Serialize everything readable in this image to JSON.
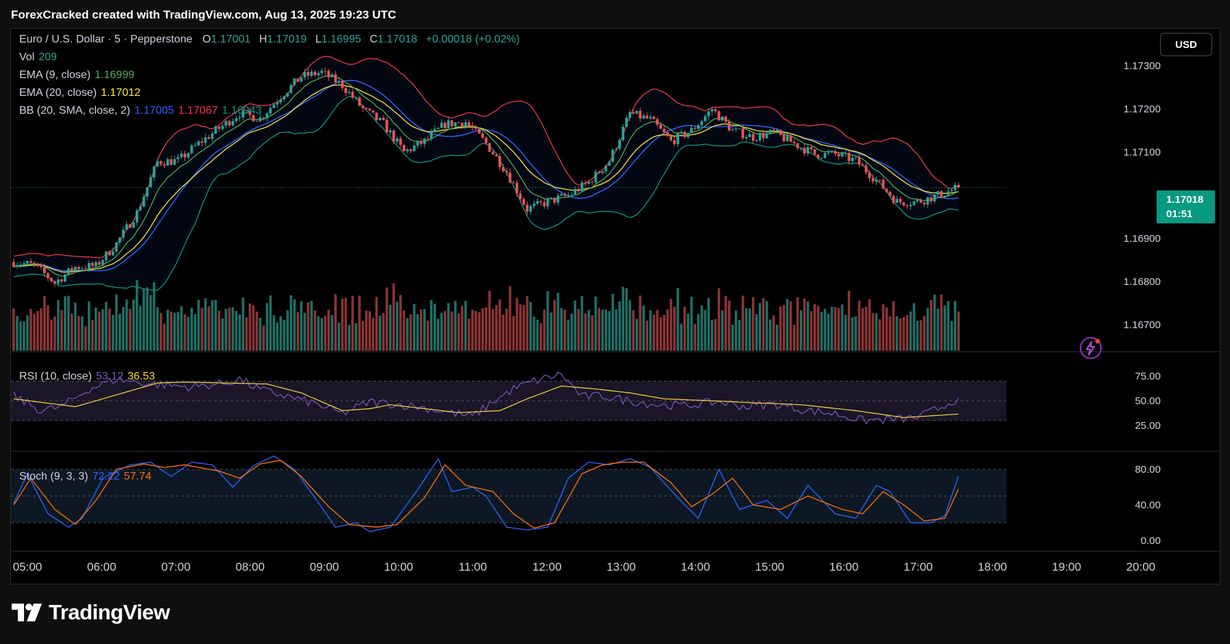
{
  "header": {
    "title": "ForexCracked created with TradingView.com, Aug 13, 2025 19:23 UTC"
  },
  "legend": {
    "symbol": "Euro / U.S. Dollar · 5 · Pepperstone",
    "o_label": "O",
    "o_value": "1.17001",
    "h_label": "H",
    "h_value": "1.17019",
    "l_label": "L",
    "l_value": "1.16995",
    "c_label": "C",
    "c_value": "1.17018",
    "change": "+0.00018 (+0.02%)",
    "vol_label": "Vol",
    "vol_value": "209",
    "ema9_label": "EMA (9, close)",
    "ema9_value": "1.16999",
    "ema20_label": "EMA (20, close)",
    "ema20_value": "1.17012",
    "bb_label": "BB (20, SMA, close, 2)",
    "bb_mid": "1.17005",
    "bb_upper": "1.17067",
    "bb_lower": "1.16943",
    "rsi_label": "RSI (10, close)",
    "rsi_value": "53.12",
    "rsi_ma": "36.53",
    "stoch_label": "Stoch (9, 3, 3)",
    "stoch_k": "72.22",
    "stoch_d": "57.74"
  },
  "currency_button": "USD",
  "last_price": {
    "price": "1.17018",
    "countdown": "01:51"
  },
  "logo": {
    "text": "TradingView"
  },
  "colors": {
    "up": "#26a69a",
    "down": "#ef5350",
    "vol_up": "#1f6f66",
    "vol_down": "#8c3535",
    "ema9": "#4caf50",
    "ema20": "#ffeb3b",
    "bb_mid": "#2962ff",
    "bb_upper": "#f23645",
    "bb_lower": "#089981",
    "rsi": "#7e57c2",
    "rsi_ma": "#fdd835",
    "stoch_k": "#2962ff",
    "stoch_d": "#ff6d00",
    "axis_text": "#d1d4dc"
  },
  "chart_data": {
    "type": "candlestick",
    "symbol": "Euro / U.S. Dollar",
    "interval": "5",
    "x_ticks": [
      "05:00",
      "06:00",
      "07:00",
      "08:00",
      "09:00",
      "10:00",
      "11:00",
      "12:00",
      "13:00",
      "14:00",
      "15:00",
      "16:00",
      "17:00",
      "18:00",
      "19:00",
      "20:00"
    ],
    "price_axis": {
      "ticks": [
        "1.17300",
        "1.17200",
        "1.17100",
        "1.16900",
        "1.16800",
        "1.16700"
      ],
      "range": [
        1.1664,
        1.1737
      ]
    },
    "rsi_axis": {
      "ticks": [
        "75.00",
        "50.00",
        "25.00"
      ],
      "range": [
        0,
        100
      ],
      "band": [
        30,
        70
      ]
    },
    "stoch_axis": {
      "ticks": [
        "80.00",
        "40.00",
        "0.00"
      ],
      "range": [
        -10,
        100
      ],
      "band": [
        20,
        80
      ]
    },
    "price_anchors": [
      [
        0,
        1.16846
      ],
      [
        6,
        1.16838
      ],
      [
        12,
        1.16798
      ],
      [
        18,
        1.16834
      ],
      [
        24,
        1.16836
      ],
      [
        30,
        1.16888
      ],
      [
        36,
        1.1696
      ],
      [
        42,
        1.17078
      ],
      [
        48,
        1.1708
      ],
      [
        54,
        1.1712
      ],
      [
        60,
        1.17155
      ],
      [
        66,
        1.1719
      ],
      [
        72,
        1.17178
      ],
      [
        78,
        1.1723
      ],
      [
        84,
        1.17275
      ],
      [
        90,
        1.17285
      ],
      [
        96,
        1.17255
      ],
      [
        102,
        1.172
      ],
      [
        108,
        1.17165
      ],
      [
        114,
        1.171
      ],
      [
        120,
        1.17125
      ],
      [
        126,
        1.17165
      ],
      [
        132,
        1.1717
      ],
      [
        138,
        1.1712
      ],
      [
        144,
        1.17055
      ],
      [
        150,
        1.16968
      ],
      [
        156,
        1.16985
      ],
      [
        162,
        1.17
      ],
      [
        168,
        1.1703
      ],
      [
        174,
        1.1708
      ],
      [
        180,
        1.1719
      ],
      [
        186,
        1.17175
      ],
      [
        192,
        1.17125
      ],
      [
        198,
        1.1715
      ],
      [
        204,
        1.172
      ],
      [
        210,
        1.1715
      ],
      [
        216,
        1.17135
      ],
      [
        222,
        1.17145
      ],
      [
        228,
        1.1712
      ],
      [
        234,
        1.17095
      ],
      [
        240,
        1.17095
      ],
      [
        246,
        1.1708
      ],
      [
        252,
        1.17035
      ],
      [
        258,
        1.16985
      ],
      [
        264,
        1.16985
      ],
      [
        270,
        1.17
      ],
      [
        276,
        1.17018
      ]
    ],
    "volume_range": [
      0,
      2000
    ],
    "rsi_anchors": [
      [
        0,
        55
      ],
      [
        8,
        40
      ],
      [
        14,
        44
      ],
      [
        22,
        62
      ],
      [
        30,
        72
      ],
      [
        40,
        67
      ],
      [
        52,
        64
      ],
      [
        62,
        68
      ],
      [
        66,
        72
      ],
      [
        72,
        61
      ],
      [
        76,
        58
      ],
      [
        88,
        47
      ],
      [
        96,
        37
      ],
      [
        104,
        49
      ],
      [
        110,
        47
      ],
      [
        118,
        44
      ],
      [
        126,
        39
      ],
      [
        134,
        34
      ],
      [
        140,
        49
      ],
      [
        146,
        62
      ],
      [
        152,
        70
      ],
      [
        160,
        77
      ],
      [
        166,
        54
      ],
      [
        172,
        55
      ],
      [
        180,
        50
      ],
      [
        188,
        46
      ],
      [
        196,
        45
      ],
      [
        206,
        49
      ],
      [
        214,
        44
      ],
      [
        222,
        47
      ],
      [
        232,
        40
      ],
      [
        240,
        37
      ],
      [
        248,
        30
      ],
      [
        256,
        31
      ],
      [
        264,
        33
      ],
      [
        270,
        42
      ],
      [
        276,
        53.12
      ]
    ],
    "rsi_ma_anchors": [
      [
        0,
        52
      ],
      [
        18,
        44
      ],
      [
        34,
        60
      ],
      [
        42,
        68
      ],
      [
        50,
        69
      ],
      [
        74,
        67
      ],
      [
        84,
        58
      ],
      [
        96,
        40
      ],
      [
        104,
        42
      ],
      [
        110,
        46
      ],
      [
        120,
        42
      ],
      [
        130,
        38
      ],
      [
        142,
        40
      ],
      [
        150,
        52
      ],
      [
        160,
        65
      ],
      [
        170,
        62
      ],
      [
        180,
        58
      ],
      [
        190,
        52
      ],
      [
        204,
        50
      ],
      [
        216,
        48
      ],
      [
        230,
        46
      ],
      [
        246,
        40
      ],
      [
        260,
        33
      ],
      [
        276,
        36.53
      ]
    ],
    "stoch_k_anchors": [
      [
        0,
        42
      ],
      [
        4,
        75
      ],
      [
        10,
        30
      ],
      [
        16,
        15
      ],
      [
        20,
        25
      ],
      [
        26,
        70
      ],
      [
        34,
        85
      ],
      [
        40,
        88
      ],
      [
        46,
        72
      ],
      [
        52,
        88
      ],
      [
        58,
        85
      ],
      [
        64,
        60
      ],
      [
        70,
        84
      ],
      [
        76,
        95
      ],
      [
        82,
        80
      ],
      [
        88,
        48
      ],
      [
        94,
        15
      ],
      [
        100,
        20
      ],
      [
        104,
        10
      ],
      [
        110,
        15
      ],
      [
        118,
        57
      ],
      [
        124,
        92
      ],
      [
        128,
        55
      ],
      [
        134,
        60
      ],
      [
        138,
        50
      ],
      [
        144,
        15
      ],
      [
        150,
        12
      ],
      [
        156,
        15
      ],
      [
        162,
        70
      ],
      [
        168,
        88
      ],
      [
        174,
        85
      ],
      [
        180,
        92
      ],
      [
        186,
        82
      ],
      [
        194,
        48
      ],
      [
        200,
        25
      ],
      [
        206,
        80
      ],
      [
        212,
        35
      ],
      [
        220,
        45
      ],
      [
        226,
        25
      ],
      [
        232,
        62
      ],
      [
        240,
        30
      ],
      [
        246,
        25
      ],
      [
        252,
        62
      ],
      [
        256,
        55
      ],
      [
        262,
        20
      ],
      [
        268,
        20
      ],
      [
        272,
        28
      ],
      [
        276,
        72.22
      ]
    ],
    "stoch_d_anchors": [
      [
        0,
        40
      ],
      [
        5,
        70
      ],
      [
        12,
        35
      ],
      [
        18,
        18
      ],
      [
        24,
        45
      ],
      [
        30,
        80
      ],
      [
        38,
        86
      ],
      [
        44,
        82
      ],
      [
        50,
        85
      ],
      [
        60,
        78
      ],
      [
        66,
        70
      ],
      [
        72,
        86
      ],
      [
        78,
        90
      ],
      [
        84,
        72
      ],
      [
        92,
        38
      ],
      [
        98,
        18
      ],
      [
        106,
        15
      ],
      [
        112,
        18
      ],
      [
        120,
        48
      ],
      [
        126,
        85
      ],
      [
        132,
        62
      ],
      [
        140,
        55
      ],
      [
        146,
        30
      ],
      [
        152,
        14
      ],
      [
        158,
        20
      ],
      [
        166,
        75
      ],
      [
        172,
        85
      ],
      [
        178,
        88
      ],
      [
        184,
        88
      ],
      [
        192,
        65
      ],
      [
        198,
        38
      ],
      [
        204,
        52
      ],
      [
        210,
        70
      ],
      [
        216,
        40
      ],
      [
        224,
        35
      ],
      [
        232,
        50
      ],
      [
        242,
        35
      ],
      [
        248,
        30
      ],
      [
        254,
        55
      ],
      [
        260,
        40
      ],
      [
        266,
        22
      ],
      [
        272,
        25
      ],
      [
        276,
        57.74
      ]
    ],
    "last_price": "1.17018"
  }
}
